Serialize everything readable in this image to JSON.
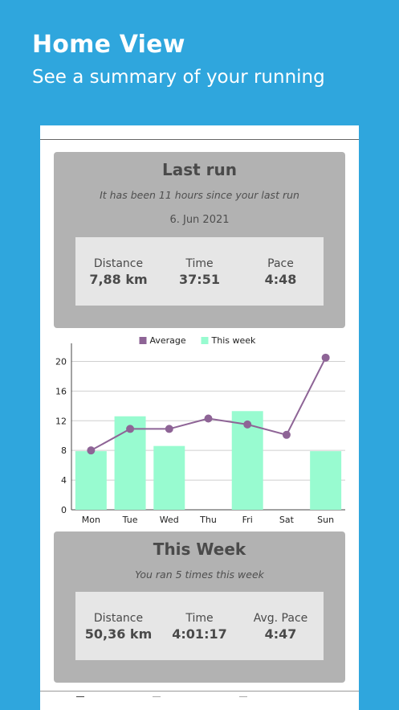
{
  "hero": {
    "title": "Home View",
    "subtitle": "See a summary of your running"
  },
  "last_run": {
    "title": "Last run",
    "since": "It has been 11 hours since your last run",
    "date": "6. Jun 2021",
    "distance_label": "Distance",
    "distance_value": "7,88 km",
    "time_label": "Time",
    "time_value": "37:51",
    "pace_label": "Pace",
    "pace_value": "4:48"
  },
  "this_week": {
    "title": "This Week",
    "summary": "You ran 5 times this week",
    "distance_label": "Distance",
    "distance_value": "50,36 km",
    "time_label": "Time",
    "time_value": "4:01:17",
    "pace_label": "Avg. Pace",
    "pace_value": "4:47"
  },
  "colors": {
    "background": "#2fa6dd",
    "card": "#b2b2b2",
    "stats_box": "#e6e6e6",
    "bar": "#98fbd0",
    "average_line": "#8e6496"
  },
  "chart_data": {
    "type": "bar",
    "categories": [
      "Mon",
      "Tue",
      "Wed",
      "Thu",
      "Fri",
      "Sat",
      "Sun"
    ],
    "series": [
      {
        "name": "This week",
        "type": "bar",
        "values": [
          7.9,
          12.6,
          8.6,
          0,
          13.3,
          0,
          7.9
        ]
      },
      {
        "name": "Average",
        "type": "line",
        "values": [
          8.0,
          10.9,
          10.9,
          12.3,
          11.5,
          10.1,
          20.5
        ]
      }
    ],
    "yticks": [
      "0",
      "4",
      "8",
      "12",
      "16",
      "20"
    ],
    "ylim": [
      0,
      22
    ],
    "grid": true,
    "legend_position": "top-center"
  }
}
